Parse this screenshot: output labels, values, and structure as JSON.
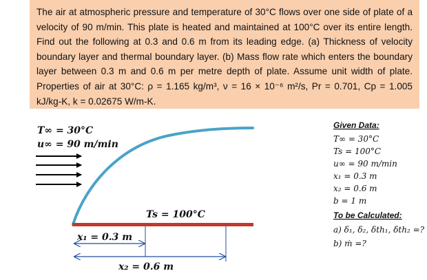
{
  "problem": {
    "text": "The air at atmospheric pressure and temperature of 30°C flows over one side of plate of a velocity of 90 m/min. This plate is heated and maintained at 100°C over its entire length. Find out the following at 0.3 and 0.6 m from its leading edge. (a) Thickness of velocity boundary layer and thermal boundary layer. (b) Mass flow rate which enters the boundary layer between 0.3 m and 0.6 m per metre depth of plate. Assume unit width of plate. Properties of air at 30°C: ρ = 1.165 kg/m³, ν = 16 × 10⁻⁶ m²/s, Pr = 0.701, Cp = 1.005 kJ/kg-K, k = 0.02675 W/m-K."
  },
  "diagram": {
    "free_stream_temp": "T∞ = 30°C",
    "free_stream_velocity": "u∞ = 90 m/min",
    "plate_temp": "Ts = 100°C",
    "x1_label": "x₁ = 0.3 m",
    "x2_label": "x₂ = 0.6 m",
    "colors": {
      "plate": "#c0392b",
      "boundary_layer": "#4aa3c8",
      "dimension": "#1f4e9e",
      "problem_bg": "#f9cfae"
    }
  },
  "given": {
    "heading": "Given Data:",
    "items": [
      "T∞ = 30°C",
      "Ts = 100°C",
      "u∞ = 90 m/min",
      "x₁ = 0.3 m",
      "x₂ = 0.6 m",
      "b = 1 m"
    ]
  },
  "to_calc": {
    "heading": "To be Calculated:",
    "items": [
      "a) δ₁, δ₂, δth₁, δth₂ =?",
      "b) ṁ =?"
    ]
  }
}
